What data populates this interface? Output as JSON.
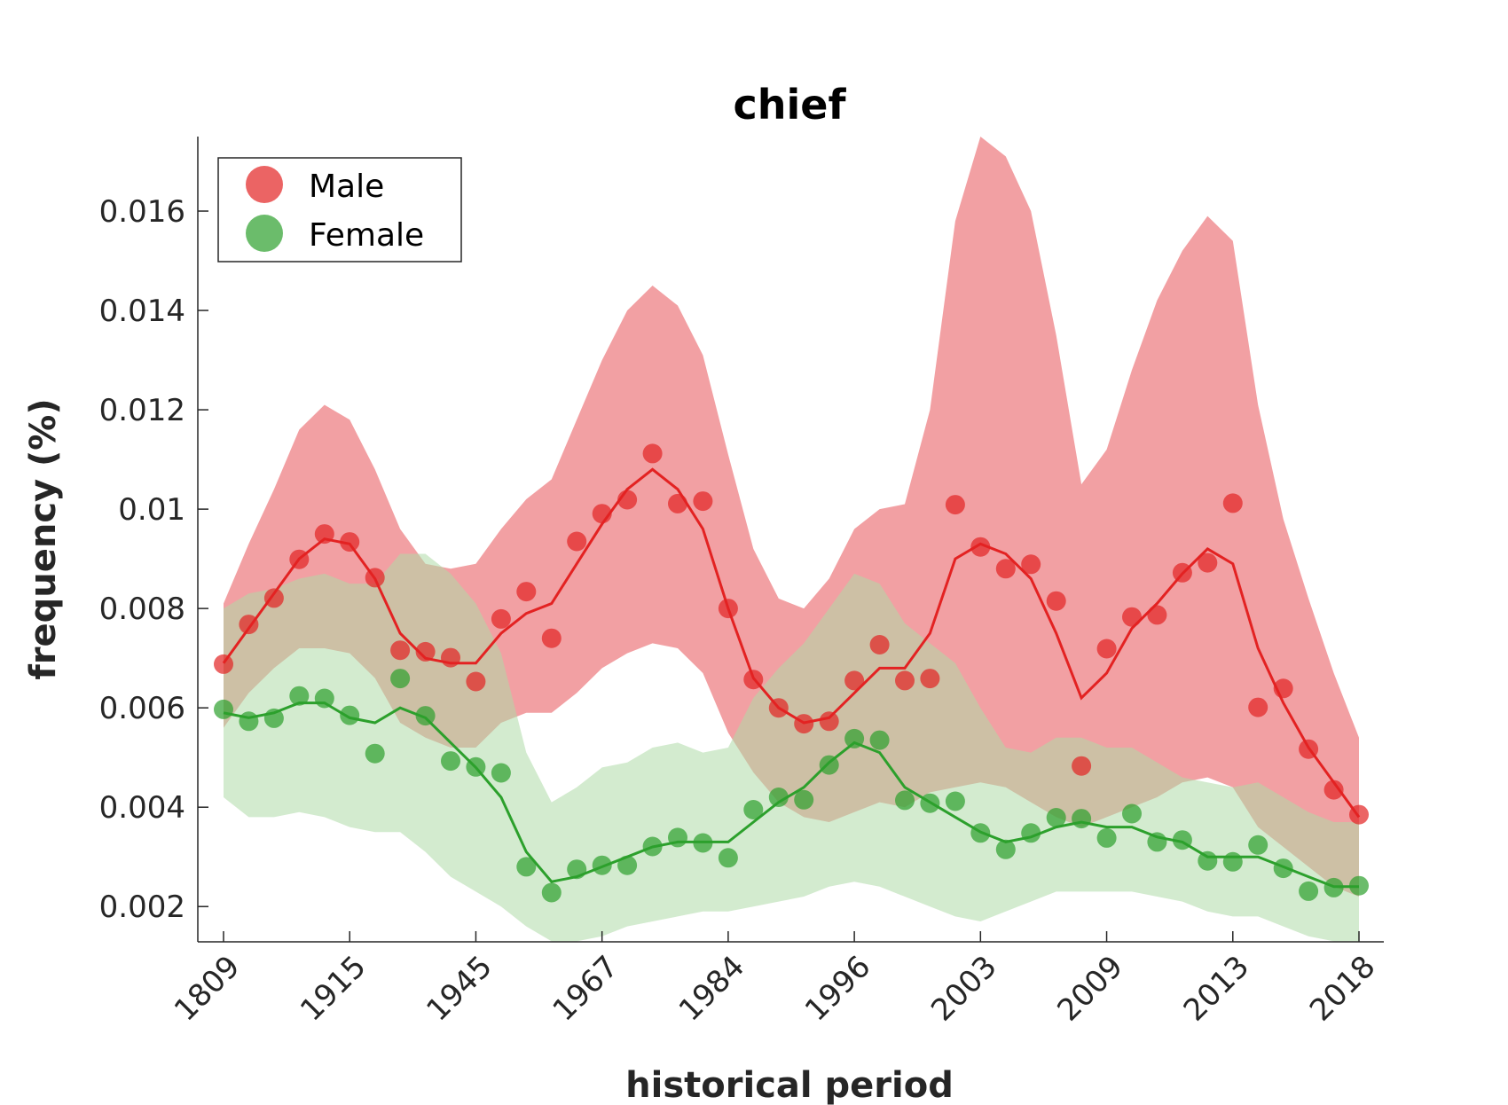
{
  "chart_data": {
    "type": "line",
    "title": "chief",
    "xlabel": "historical period",
    "ylabel": "frequency (%)",
    "x_tick_labels": [
      "1809",
      "1915",
      "1945",
      "1967",
      "1984",
      "1996",
      "2003",
      "2009",
      "2013",
      "2018"
    ],
    "y_ticks": [
      0.002,
      0.004,
      0.006,
      0.008,
      0.01,
      0.012,
      0.014,
      0.016
    ],
    "y_tick_labels": [
      "0.002",
      "0.004",
      "0.006",
      "0.008",
      "0.01",
      "0.012",
      "0.014",
      "0.016"
    ],
    "ylim": [
      0.00129,
      0.0175
    ],
    "legend_position": "top-left",
    "series": [
      {
        "name": "Male",
        "color": "#e32222",
        "band_color": "#f2a0a3",
        "points": [
          0.00688,
          0.00768,
          0.00821,
          0.00899,
          0.0095,
          0.00934,
          0.00862,
          0.00716,
          0.00713,
          0.00701,
          0.00653,
          0.00779,
          0.00834,
          0.0074,
          0.00935,
          0.00991,
          0.01019,
          0.01112,
          0.01011,
          0.01016,
          0.008,
          0.00657,
          0.006,
          0.00568,
          0.00573,
          0.00655,
          0.00727,
          0.00655,
          0.00659,
          0.01009,
          0.00924,
          0.0088,
          0.00889,
          0.00815,
          0.00483,
          0.00719,
          0.00783,
          0.00787,
          0.00872,
          0.00892,
          0.01012,
          0.00601,
          0.00639,
          0.00517,
          0.00435,
          0.00385
        ],
        "trend": [
          0.0069,
          0.0076,
          0.0083,
          0.009,
          0.0094,
          0.0093,
          0.0086,
          0.0075,
          0.007,
          0.0069,
          0.0069,
          0.0075,
          0.0079,
          0.0081,
          0.0089,
          0.0097,
          0.0104,
          0.0108,
          0.0104,
          0.0096,
          0.008,
          0.0066,
          0.006,
          0.0057,
          0.0058,
          0.0063,
          0.0068,
          0.0068,
          0.0075,
          0.009,
          0.0093,
          0.0091,
          0.0086,
          0.0075,
          0.0062,
          0.0067,
          0.0076,
          0.0081,
          0.0087,
          0.0092,
          0.0089,
          0.0072,
          0.0061,
          0.0052,
          0.0045,
          0.0038
        ],
        "band_upper": [
          0.0081,
          0.0093,
          0.0104,
          0.0116,
          0.0121,
          0.0118,
          0.0108,
          0.0096,
          0.0089,
          0.0088,
          0.0089,
          0.0096,
          0.0102,
          0.0106,
          0.0118,
          0.013,
          0.014,
          0.0145,
          0.0141,
          0.0131,
          0.0111,
          0.0092,
          0.0082,
          0.008,
          0.0086,
          0.0096,
          0.01,
          0.0101,
          0.012,
          0.0158,
          0.0175,
          0.0171,
          0.016,
          0.0135,
          0.0105,
          0.0112,
          0.0128,
          0.0142,
          0.0152,
          0.0159,
          0.0154,
          0.0121,
          0.0098,
          0.0082,
          0.0067,
          0.0054
        ],
        "band_lower": [
          0.0056,
          0.0063,
          0.0068,
          0.0072,
          0.0072,
          0.0071,
          0.0066,
          0.0057,
          0.0054,
          0.0052,
          0.0052,
          0.0057,
          0.0059,
          0.0059,
          0.0063,
          0.0068,
          0.0071,
          0.0073,
          0.0072,
          0.0067,
          0.0055,
          0.0047,
          0.0041,
          0.0038,
          0.0037,
          0.0039,
          0.0041,
          0.004,
          0.0043,
          0.0044,
          0.0045,
          0.0044,
          0.0041,
          0.0038,
          0.0036,
          0.0038,
          0.004,
          0.0042,
          0.0045,
          0.0046,
          0.0044,
          0.0036,
          0.0032,
          0.0028,
          0.0024,
          0.0022
        ]
      },
      {
        "name": "Female",
        "color": "#2ca02c",
        "band_color": "#afdaa8",
        "points": [
          0.00597,
          0.00573,
          0.00579,
          0.00624,
          0.00619,
          0.00585,
          0.00508,
          0.00659,
          0.00584,
          0.00493,
          0.00481,
          0.00469,
          0.0028,
          0.00228,
          0.00275,
          0.00283,
          0.00283,
          0.00321,
          0.00339,
          0.00328,
          0.00298,
          0.00395,
          0.0042,
          0.00415,
          0.00485,
          0.00538,
          0.00535,
          0.00414,
          0.00408,
          0.00412,
          0.00348,
          0.00315,
          0.00348,
          0.00379,
          0.00377,
          0.00338,
          0.00387,
          0.0033,
          0.00334,
          0.00292,
          0.0029,
          0.00324,
          0.00277,
          0.00231,
          0.00238,
          0.00242
        ],
        "trend": [
          0.0059,
          0.0058,
          0.0059,
          0.0061,
          0.0061,
          0.0058,
          0.0057,
          0.006,
          0.0058,
          0.0053,
          0.0048,
          0.0042,
          0.0031,
          0.0025,
          0.0026,
          0.0028,
          0.003,
          0.0032,
          0.0033,
          0.0033,
          0.0033,
          0.0037,
          0.0041,
          0.0044,
          0.0049,
          0.0053,
          0.0051,
          0.0044,
          0.0041,
          0.0038,
          0.0035,
          0.0033,
          0.0034,
          0.0036,
          0.0037,
          0.0036,
          0.0036,
          0.0034,
          0.0033,
          0.003,
          0.003,
          0.003,
          0.0028,
          0.0026,
          0.0024,
          0.0024
        ],
        "band_upper": [
          0.008,
          0.0083,
          0.0084,
          0.0086,
          0.0087,
          0.0085,
          0.0085,
          0.0091,
          0.0091,
          0.0087,
          0.0081,
          0.0071,
          0.0051,
          0.0041,
          0.0044,
          0.0048,
          0.0049,
          0.0052,
          0.0053,
          0.0051,
          0.0052,
          0.0062,
          0.0068,
          0.0073,
          0.008,
          0.0087,
          0.0085,
          0.0077,
          0.0073,
          0.0069,
          0.006,
          0.0052,
          0.0051,
          0.0054,
          0.0054,
          0.0052,
          0.0052,
          0.0049,
          0.0046,
          0.0045,
          0.0044,
          0.0045,
          0.0042,
          0.0039,
          0.0037,
          0.0037
        ],
        "band_lower": [
          0.0042,
          0.0038,
          0.0038,
          0.0039,
          0.0038,
          0.0036,
          0.0035,
          0.0035,
          0.0031,
          0.0026,
          0.0023,
          0.002,
          0.0016,
          0.0013,
          0.0013,
          0.0014,
          0.0016,
          0.0017,
          0.0018,
          0.0019,
          0.0019,
          0.002,
          0.0021,
          0.0022,
          0.0024,
          0.0025,
          0.0024,
          0.0022,
          0.002,
          0.0018,
          0.0017,
          0.0019,
          0.0021,
          0.0023,
          0.0023,
          0.0023,
          0.0023,
          0.0022,
          0.0021,
          0.0019,
          0.0018,
          0.0018,
          0.0016,
          0.0014,
          0.0013,
          0.0013
        ]
      }
    ]
  }
}
